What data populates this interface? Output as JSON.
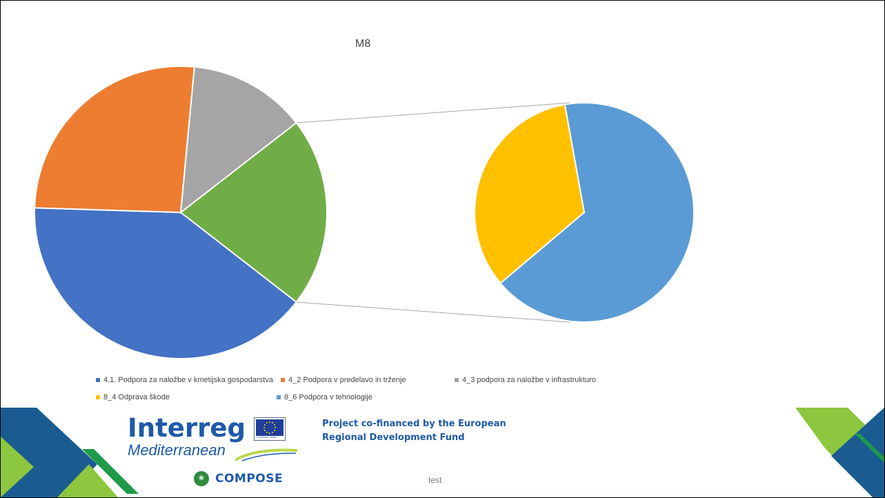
{
  "chart_data": {
    "type": "pie",
    "subtype": "pie-of-pie",
    "title": "M8",
    "slices": [
      {
        "name": "4.1. Podpora za naložbe v kmetijska gospodarstva",
        "value": 40,
        "color": "#4472C4"
      },
      {
        "name": "4_2 Podpora v predelavo in trženje",
        "value": 26,
        "color": "#ED7D31"
      },
      {
        "name": "4_3 podpora za naložbe v infrastrukturo",
        "value": 13,
        "color": "#A5A5A5"
      },
      {
        "name": "8_4 Odprava škode",
        "value": 7,
        "color": "#FFC000"
      },
      {
        "name": "8_6 Podpora v tehnologije",
        "value": 14,
        "color": "#5B9BD5"
      }
    ],
    "other_slice": {
      "value": 21,
      "color": "#70AD47"
    },
    "secondary_slices": [
      "8_4 Odprava škode",
      "8_6 Podpora v tehnologije"
    ],
    "legend_position": "bottom"
  },
  "footer": {
    "logo_interreg": "Interreg",
    "logo_mediterranean": "Mediterranean",
    "eu_label": "EUROPEAN UNION",
    "logo_compose": "COMPOSE",
    "funding_line1": "Project co-financed by the European",
    "funding_line2": "Regional Development Fund",
    "note": "test"
  }
}
